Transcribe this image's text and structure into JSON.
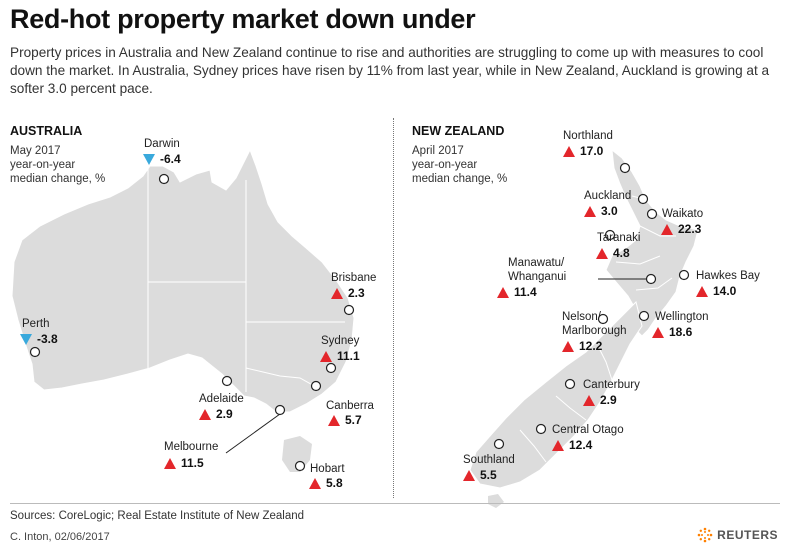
{
  "header": {
    "title": "Red-hot property market down under",
    "subtitle": "Property prices in Australia and New Zealand continue to rise and authorities are struggling to come up with measures to cool down the market. In Australia, Sydney prices have risen by 11% from last year, while in New Zealand, Auckland is growing at a softer 3.0 percent pace."
  },
  "australia": {
    "title": "AUSTRALIA",
    "note_line1": "May 2017",
    "note_line2": "year-on-year",
    "note_line3": "median change, %",
    "cities": [
      {
        "name": "Darwin",
        "value": "-6.4",
        "direction": "down"
      },
      {
        "name": "Brisbane",
        "value": "2.3",
        "direction": "up"
      },
      {
        "name": "Perth",
        "value": "-3.8",
        "direction": "down"
      },
      {
        "name": "Sydney",
        "value": "11.1",
        "direction": "up"
      },
      {
        "name": "Adelaide",
        "value": "2.9",
        "direction": "up"
      },
      {
        "name": "Canberra",
        "value": "5.7",
        "direction": "up"
      },
      {
        "name": "Melbourne",
        "value": "11.5",
        "direction": "up"
      },
      {
        "name": "Hobart",
        "value": "5.8",
        "direction": "up"
      }
    ]
  },
  "new_zealand": {
    "title": "NEW ZEALAND",
    "note_line1": "April 2017",
    "note_line2": "year-on-year",
    "note_line3": "median change, %",
    "regions": [
      {
        "name": "Northland",
        "value": "17.0",
        "direction": "up"
      },
      {
        "name": "Auckland",
        "value": "3.0",
        "direction": "up"
      },
      {
        "name": "Waikato",
        "value": "22.3",
        "direction": "up"
      },
      {
        "name": "Taranaki",
        "value": "4.8",
        "direction": "up"
      },
      {
        "name_line1": "Manawatu/",
        "name_line2": "Whanganui",
        "value": "11.4",
        "direction": "up"
      },
      {
        "name": "Hawkes Bay",
        "value": "14.0",
        "direction": "up"
      },
      {
        "name_line1": "Nelson/",
        "name_line2": "Marlborough",
        "value": "12.2",
        "direction": "up"
      },
      {
        "name": "Wellington",
        "value": "18.6",
        "direction": "up"
      },
      {
        "name": "Canterbury",
        "value": "2.9",
        "direction": "up"
      },
      {
        "name": "Central Otago",
        "value": "12.4",
        "direction": "up"
      },
      {
        "name": "Southland",
        "value": "5.5",
        "direction": "up"
      }
    ]
  },
  "footer": {
    "source": "Sources: CoreLogic; Real Estate Institute of New Zealand",
    "credit": "C. Inton,  02/06/2017",
    "logo": "REUTERS"
  },
  "colors": {
    "land": "#dcdcdc",
    "border": "#ffffff",
    "increase": "#e3262b",
    "decrease": "#39a9dc"
  }
}
